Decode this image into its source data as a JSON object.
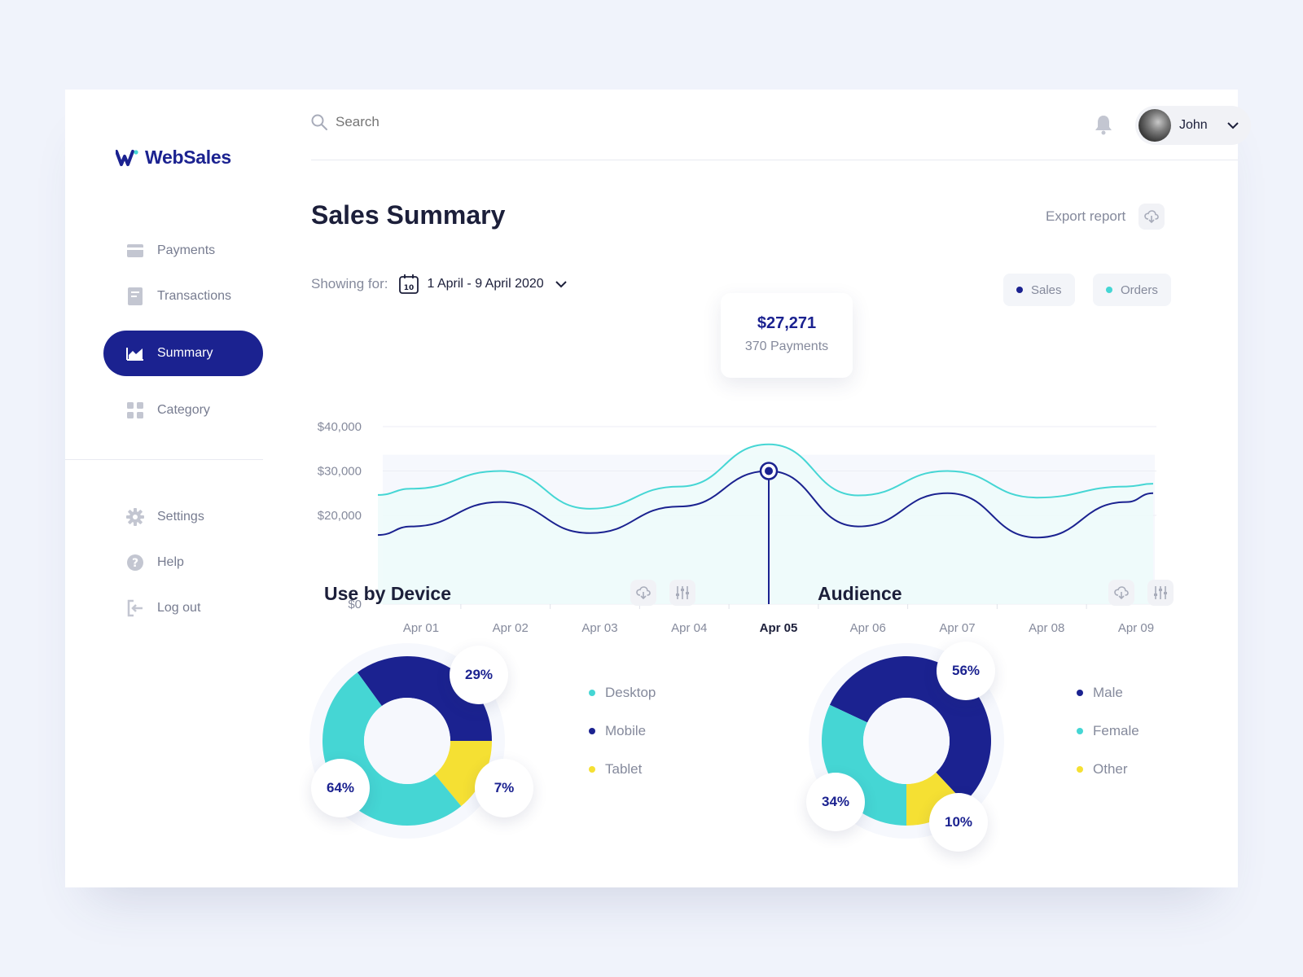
{
  "app": {
    "name": "WebSales"
  },
  "sidebar": {
    "items": [
      {
        "label": "Payments",
        "icon": "card-icon",
        "active": false
      },
      {
        "label": "Transactions",
        "icon": "receipt-icon",
        "active": false
      },
      {
        "label": "Summary",
        "icon": "area-chart-icon",
        "active": true
      },
      {
        "label": "Category",
        "icon": "grid-icon",
        "active": false
      }
    ],
    "bottom_items": [
      {
        "label": "Settings",
        "icon": "gear-icon"
      },
      {
        "label": "Help",
        "icon": "help-icon"
      },
      {
        "label": "Log out",
        "icon": "logout-icon"
      }
    ]
  },
  "header": {
    "search_placeholder": "Search",
    "user_name": "John"
  },
  "page": {
    "title": "Sales Summary",
    "export_label": "Export report",
    "showing_label": "Showing for:",
    "calendar_day": "10",
    "date_range": "1 April - 9 April 2020"
  },
  "legend": {
    "sales": "Sales",
    "orders": "Orders"
  },
  "colors": {
    "navy": "#1b2290",
    "teal": "#45d6d4",
    "yellow": "#f5e033",
    "muted": "#858a9c"
  },
  "chart_data": {
    "type": "line",
    "x": [
      "Apr 01",
      "Apr 02",
      "Apr 03",
      "Apr 04",
      "Apr 05",
      "Apr 06",
      "Apr 07",
      "Apr 08",
      "Apr 09"
    ],
    "highlight_index": 4,
    "y_ticks": [
      "$0",
      "$20,000",
      "$30,000",
      "$40,000"
    ],
    "series": [
      {
        "name": "Sales",
        "color": "#1b2290",
        "values": [
          17500,
          23000,
          16000,
          22000,
          30000,
          17500,
          25000,
          15000,
          23000
        ]
      },
      {
        "name": "Orders",
        "color": "#45d6d4",
        "values": [
          26000,
          30000,
          21500,
          26500,
          36000,
          24500,
          30000,
          24000,
          26500
        ]
      }
    ],
    "tooltip": {
      "value": "$27,271",
      "sub": "370 Payments"
    }
  },
  "device": {
    "title": "Use by Device",
    "legend": [
      "Desktop",
      "Mobile",
      "Tablet"
    ],
    "legend_colors": [
      "#45d6d4",
      "#1b2290",
      "#f5e033"
    ],
    "labels": [
      "29%",
      "7%",
      "64%"
    ]
  },
  "audience": {
    "title": "Audience",
    "legend": [
      "Male",
      "Female",
      "Other"
    ],
    "legend_colors": [
      "#1b2290",
      "#45d6d4",
      "#f5e033"
    ],
    "labels": [
      "56%",
      "10%",
      "34%"
    ]
  }
}
